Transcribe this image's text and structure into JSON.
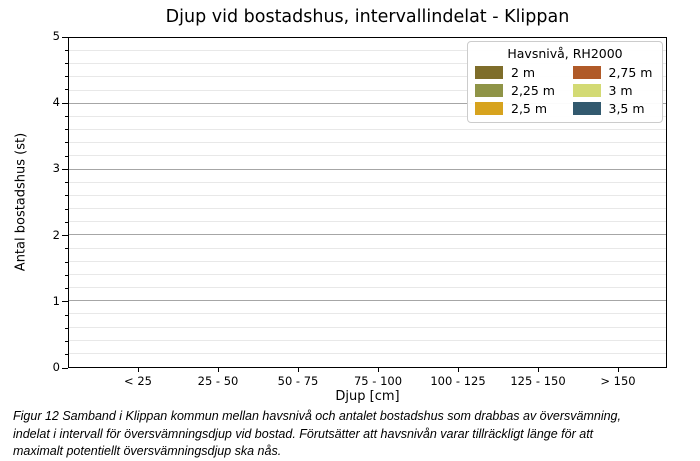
{
  "chart_data": {
    "type": "bar",
    "title": "Djup vid bostadshus, intervallindelat - Klippan",
    "xlabel": "Djup [cm]",
    "ylabel": "Antal bostadshus (st)",
    "ylim": [
      0,
      5
    ],
    "y_major_step": 1,
    "y_minor_step": 0.2,
    "grid": true,
    "legend_title": "Havsnivå, RH2000",
    "legend_position": "upper right",
    "categories": [
      "< 25",
      "25 - 50",
      "50 - 75",
      "75 - 100",
      "100 - 125",
      "125 - 150",
      "> 150"
    ],
    "series": [
      {
        "name": "2 m",
        "color": "#7e6d2a",
        "values": [
          0,
          0,
          0,
          0,
          0,
          0,
          0
        ]
      },
      {
        "name": "2,25 m",
        "color": "#8f9447",
        "values": [
          0,
          0,
          0,
          0,
          0,
          0,
          0
        ]
      },
      {
        "name": "2,5 m",
        "color": "#d7a31e",
        "values": [
          0,
          0,
          0,
          0,
          0,
          0,
          0
        ]
      },
      {
        "name": "2,75 m",
        "color": "#b05a28",
        "values": [
          0,
          0,
          0,
          0,
          0,
          0,
          0
        ]
      },
      {
        "name": "3 m",
        "color": "#d3da74",
        "values": [
          0,
          0,
          0,
          0,
          0,
          0,
          0
        ]
      },
      {
        "name": "3,5 m",
        "color": "#32596e",
        "values": [
          0,
          0,
          0,
          0,
          0,
          0,
          0
        ]
      }
    ],
    "grid_major_color": "#a6a6a6",
    "grid_minor_color": "#e8e8e8"
  },
  "caption": {
    "lines": [
      "Figur 12 Samband i Klippan kommun mellan havsnivå och antalet bostadshus som drabbas av översvämning,",
      "indelat i intervall för översvämningsdjup vid bostad. Förutsätter att havsnivån varar tillräckligt länge för att",
      "maximalt potentiellt översvämningsdjup ska nås."
    ]
  }
}
